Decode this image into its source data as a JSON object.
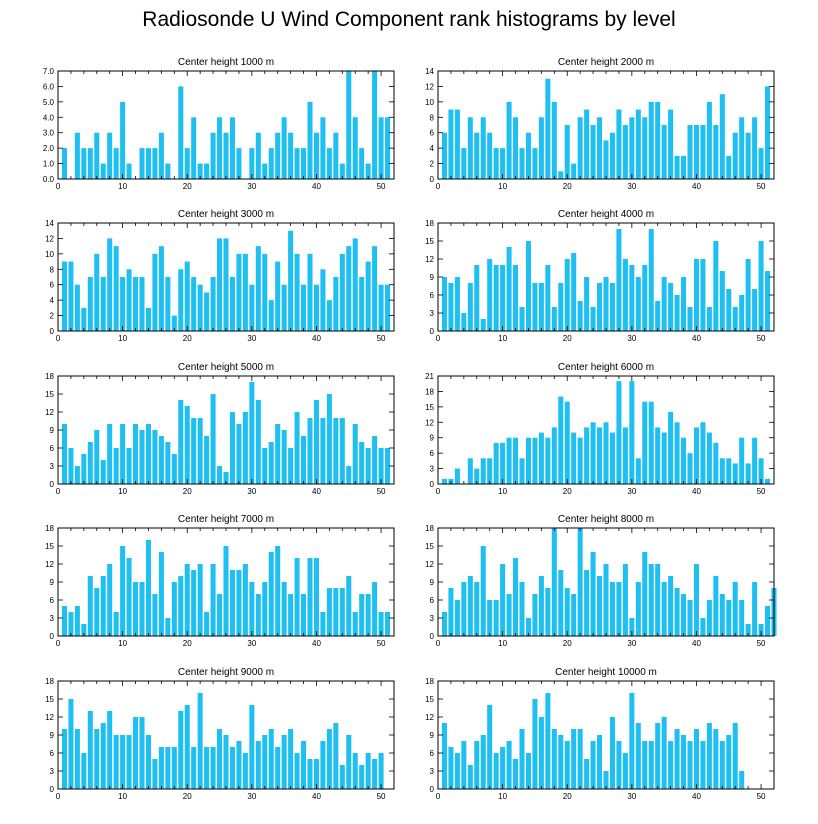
{
  "title": "Radiosonde U Wind Component rank histograms by level",
  "colors": {
    "bar": "#1ec0f2",
    "axis": "#000000",
    "background": "#ffffff"
  },
  "chart_data": [
    {
      "type": "bar",
      "title": "Center height 1000 m",
      "xlim": [
        0,
        52
      ],
      "ylim": [
        0,
        7.0
      ],
      "xticks": [
        0,
        10,
        20,
        30,
        40,
        50
      ],
      "yticks": [
        "0.0",
        "1.0",
        "2.0",
        "3.0",
        "4.0",
        "5.0",
        "6.0",
        "7.0"
      ],
      "ytick_values": [
        0,
        1,
        2,
        3,
        4,
        5,
        6,
        7
      ],
      "values": [
        2,
        0,
        3,
        2,
        2,
        3,
        1,
        3,
        2,
        5,
        1,
        0,
        2,
        2,
        2,
        3,
        1,
        0,
        6,
        2,
        4,
        1,
        1,
        3,
        4,
        3,
        4,
        2,
        0,
        2,
        3,
        1,
        2,
        3,
        4,
        3,
        2,
        2,
        5,
        3,
        4,
        2,
        3,
        1,
        7,
        4,
        2,
        1,
        7,
        4,
        4
      ]
    },
    {
      "type": "bar",
      "title": "Center height 2000 m",
      "xlim": [
        0,
        52
      ],
      "ylim": [
        0,
        14
      ],
      "xticks": [
        0,
        10,
        20,
        30,
        40,
        50
      ],
      "yticks": [
        "0",
        "2",
        "4",
        "6",
        "8",
        "10",
        "12",
        "14"
      ],
      "ytick_values": [
        0,
        2,
        4,
        6,
        8,
        10,
        12,
        14
      ],
      "values": [
        6,
        9,
        9,
        4,
        8,
        6,
        8,
        6,
        4,
        4,
        10,
        8,
        4,
        6,
        4,
        8,
        13,
        10,
        1,
        7,
        2,
        8,
        9,
        7,
        8,
        5,
        6,
        9,
        7,
        8,
        9,
        8,
        10,
        10,
        7,
        9,
        3,
        3,
        7,
        7,
        7,
        10,
        7,
        11,
        3,
        6,
        8,
        6,
        8,
        4,
        12
      ]
    },
    {
      "type": "bar",
      "title": "Center height 3000 m",
      "xlim": [
        0,
        52
      ],
      "ylim": [
        0,
        14
      ],
      "xticks": [
        0,
        10,
        20,
        30,
        40,
        50
      ],
      "yticks": [
        "0",
        "2",
        "4",
        "6",
        "8",
        "10",
        "12",
        "14"
      ],
      "ytick_values": [
        0,
        2,
        4,
        6,
        8,
        10,
        12,
        14
      ],
      "values": [
        9,
        9,
        6,
        3,
        7,
        10,
        7,
        12,
        11,
        7,
        8,
        7,
        7,
        3,
        10,
        11,
        7,
        2,
        8,
        9,
        7,
        6,
        5,
        7,
        12,
        12,
        7,
        10,
        10,
        6,
        11,
        10,
        4,
        9,
        6,
        13,
        10,
        6,
        10,
        6,
        8,
        4,
        7,
        10,
        11,
        12,
        7,
        9,
        11,
        6,
        6
      ]
    },
    {
      "type": "bar",
      "title": "Center height 4000 m",
      "xlim": [
        0,
        52
      ],
      "ylim": [
        0,
        18
      ],
      "xticks": [
        0,
        10,
        20,
        30,
        40,
        50
      ],
      "yticks": [
        "0",
        "3",
        "6",
        "9",
        "12",
        "15",
        "18"
      ],
      "ytick_values": [
        0,
        3,
        6,
        9,
        12,
        15,
        18
      ],
      "values": [
        9,
        8,
        9,
        3,
        8,
        11,
        2,
        12,
        11,
        11,
        14,
        11,
        4,
        15,
        8,
        8,
        11,
        4,
        8,
        12,
        13,
        5,
        9,
        4,
        8,
        9,
        8,
        17,
        12,
        11,
        9,
        11,
        17,
        5,
        9,
        8,
        6,
        9,
        4,
        12,
        12,
        4,
        15,
        10,
        7,
        4,
        6,
        12,
        7,
        15,
        10
      ]
    },
    {
      "type": "bar",
      "title": "Center height 5000 m",
      "xlim": [
        0,
        52
      ],
      "ylim": [
        0,
        18
      ],
      "xticks": [
        0,
        10,
        20,
        30,
        40,
        50
      ],
      "yticks": [
        "0",
        "3",
        "6",
        "9",
        "12",
        "15",
        "18"
      ],
      "ytick_values": [
        0,
        3,
        6,
        9,
        12,
        15,
        18
      ],
      "values": [
        10,
        6,
        3,
        5,
        7,
        9,
        4,
        10,
        6,
        10,
        6,
        10,
        9,
        10,
        9,
        8,
        7,
        5,
        14,
        13,
        11,
        11,
        8,
        15,
        3,
        2,
        12,
        10,
        12,
        17,
        14,
        6,
        7,
        10,
        9,
        6,
        12,
        8,
        11,
        14,
        11,
        15,
        11,
        11,
        3,
        10,
        7,
        6,
        8,
        6,
        6
      ]
    },
    {
      "type": "bar",
      "title": "Center height 6000 m",
      "xlim": [
        0,
        52
      ],
      "ylim": [
        0,
        21
      ],
      "xticks": [
        0,
        10,
        20,
        30,
        40,
        50
      ],
      "yticks": [
        "0",
        "3",
        "6",
        "9",
        "12",
        "15",
        "18",
        "21"
      ],
      "ytick_values": [
        0,
        3,
        6,
        9,
        12,
        15,
        18,
        21
      ],
      "values": [
        1,
        1,
        3,
        0,
        5,
        3,
        5,
        5,
        8,
        8,
        9,
        9,
        5,
        9,
        9,
        10,
        9,
        11,
        17,
        16,
        10,
        9,
        11,
        12,
        11,
        12,
        10,
        20,
        11,
        20,
        5,
        16,
        16,
        11,
        10,
        14,
        12,
        9,
        6,
        11,
        12,
        10,
        8,
        5,
        5,
        4,
        9,
        4,
        9,
        5,
        1
      ]
    },
    {
      "type": "bar",
      "title": "Center height 7000 m",
      "xlim": [
        0,
        52
      ],
      "ylim": [
        0,
        18
      ],
      "xticks": [
        0,
        10,
        20,
        30,
        40,
        50
      ],
      "yticks": [
        "0",
        "3",
        "6",
        "9",
        "12",
        "15",
        "18"
      ],
      "ytick_values": [
        0,
        3,
        6,
        9,
        12,
        15,
        18
      ],
      "values": [
        5,
        4,
        5,
        2,
        10,
        8,
        10,
        12,
        4,
        15,
        13,
        9,
        9,
        16,
        7,
        14,
        3,
        9,
        10,
        12,
        11,
        12,
        4,
        12,
        7,
        15,
        11,
        11,
        12,
        9,
        7,
        9,
        14,
        15,
        9,
        7,
        13,
        7,
        13,
        13,
        4,
        8,
        8,
        8,
        10,
        4,
        7,
        7,
        9,
        4,
        4
      ]
    },
    {
      "type": "bar",
      "title": "Center height 8000 m",
      "xlim": [
        0,
        52
      ],
      "ylim": [
        0,
        18
      ],
      "xticks": [
        0,
        10,
        20,
        30,
        40,
        50
      ],
      "yticks": [
        "0",
        "3",
        "6",
        "9",
        "12",
        "15",
        "18"
      ],
      "ytick_values": [
        0,
        3,
        6,
        9,
        12,
        15,
        18
      ],
      "values": [
        4,
        8,
        6,
        9,
        10,
        9,
        15,
        6,
        6,
        12,
        7,
        13,
        9,
        3,
        7,
        10,
        8,
        18,
        11,
        8,
        7,
        18,
        11,
        14,
        10,
        12,
        9,
        9,
        12,
        3,
        9,
        14,
        12,
        12,
        9,
        10,
        8,
        7,
        6,
        12,
        3,
        6,
        10,
        7,
        6,
        9,
        6,
        2,
        9,
        2,
        5,
        8
      ]
    },
    {
      "type": "bar",
      "title": "Center height 9000 m",
      "xlim": [
        0,
        52
      ],
      "ylim": [
        0,
        18
      ],
      "xticks": [
        0,
        10,
        20,
        30,
        40,
        50
      ],
      "yticks": [
        "0",
        "3",
        "6",
        "9",
        "12",
        "15",
        "18"
      ],
      "ytick_values": [
        0,
        3,
        6,
        9,
        12,
        15,
        18
      ],
      "values": [
        10,
        15,
        10,
        6,
        13,
        10,
        11,
        13,
        9,
        9,
        9,
        12,
        12,
        9,
        5,
        7,
        7,
        7,
        13,
        14,
        7,
        16,
        7,
        7,
        10,
        9,
        7,
        8,
        6,
        14,
        8,
        9,
        10,
        7,
        9,
        10,
        6,
        8,
        5,
        5,
        8,
        10,
        11,
        4,
        9,
        6,
        4,
        6,
        5,
        6
      ]
    },
    {
      "type": "bar",
      "title": "Center height 10000 m",
      "xlim": [
        0,
        52
      ],
      "ylim": [
        0,
        18
      ],
      "xticks": [
        0,
        10,
        20,
        30,
        40,
        50
      ],
      "yticks": [
        "0",
        "3",
        "6",
        "9",
        "12",
        "15",
        "18"
      ],
      "ytick_values": [
        0,
        3,
        6,
        9,
        12,
        15,
        18
      ],
      "values": [
        11,
        7,
        6,
        8,
        4,
        8,
        9,
        14,
        6,
        7,
        8,
        5,
        10,
        6,
        15,
        12,
        16,
        10,
        9,
        8,
        10,
        10,
        5,
        8,
        9,
        3,
        12,
        8,
        6,
        16,
        11,
        8,
        8,
        11,
        12,
        8,
        10,
        9,
        8,
        10,
        8,
        11,
        10,
        8,
        9,
        11,
        3
      ]
    }
  ]
}
